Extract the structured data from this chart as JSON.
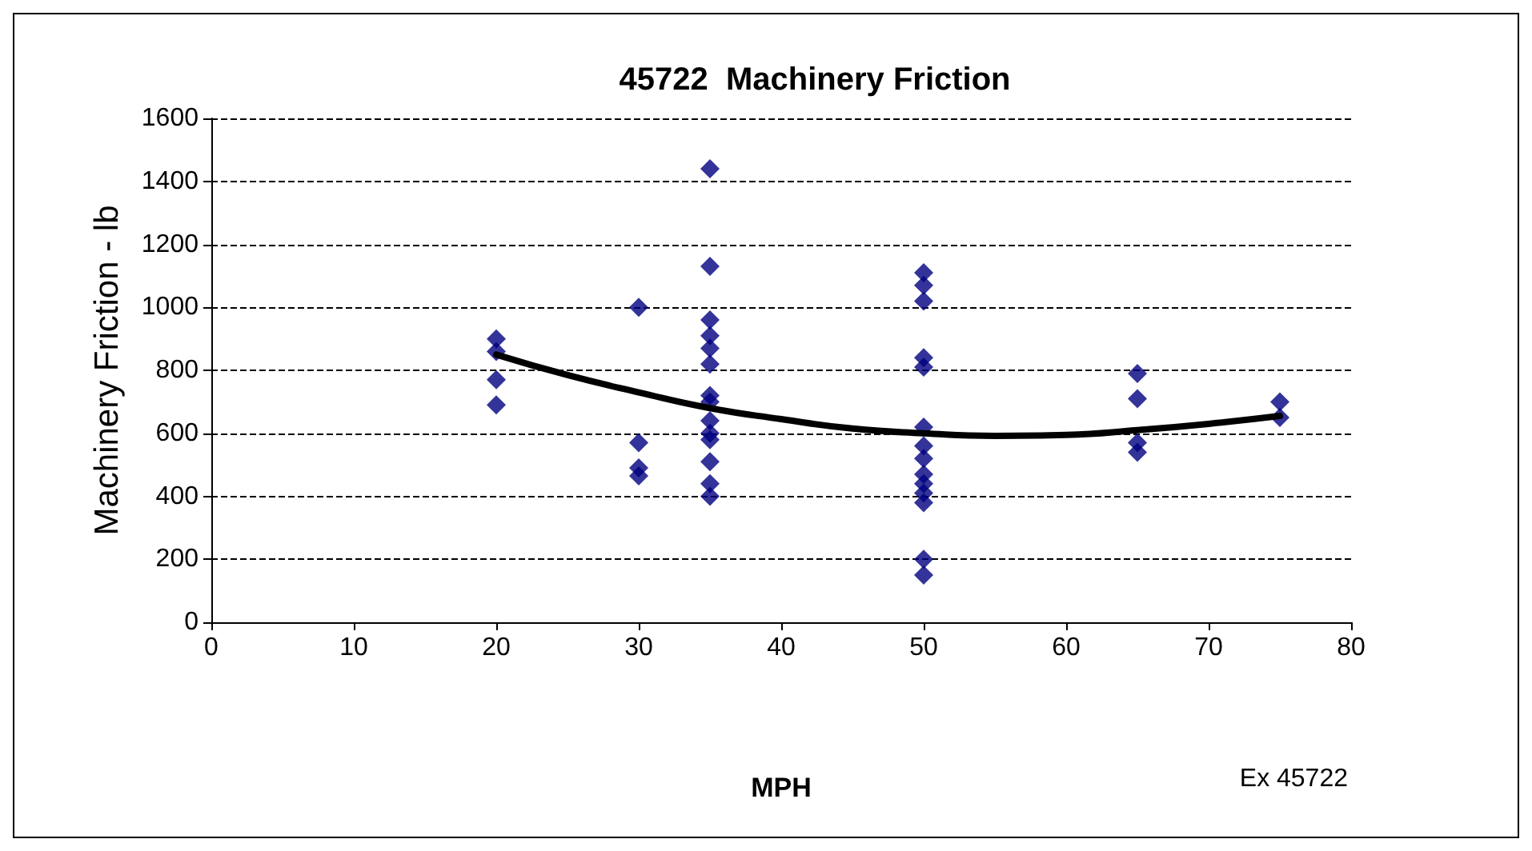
{
  "chart_data": {
    "type": "scatter",
    "title": "45722  Machinery Friction",
    "xlabel": "MPH",
    "ylabel": "Machinery Friction - lb",
    "annotations": [
      "Ex 45722"
    ],
    "xlim": [
      0,
      80
    ],
    "xticks": [
      0,
      10,
      20,
      30,
      40,
      50,
      60,
      70,
      80
    ],
    "ylim": [
      0,
      1600
    ],
    "yticks": [
      0,
      200,
      400,
      600,
      800,
      1000,
      1200,
      1400,
      1600
    ],
    "grid": "y",
    "marker": "diamond",
    "series": [
      {
        "color": "#000080",
        "x": [
          20,
          20,
          20,
          20,
          30,
          30,
          30,
          30,
          35,
          35,
          35,
          35,
          35,
          35,
          35,
          35,
          35,
          35,
          35,
          35,
          35,
          35,
          50,
          50,
          50,
          50,
          50,
          50,
          50,
          50,
          50,
          50,
          50,
          50,
          50,
          50,
          65,
          65,
          65,
          65,
          75,
          75
        ],
        "values": [
          900,
          860,
          770,
          690,
          1000,
          570,
          490,
          465,
          1440,
          1130,
          960,
          910,
          870,
          820,
          720,
          700,
          640,
          600,
          580,
          510,
          440,
          400,
          1110,
          1070,
          1020,
          840,
          810,
          620,
          560,
          520,
          470,
          440,
          410,
          380,
          200,
          150,
          790,
          710,
          570,
          540,
          700,
          650
        ]
      },
      {
        "type": "line",
        "color": "#000000",
        "marker": "none",
        "line_style": "solid",
        "x": [
          20,
          25,
          30,
          35,
          40,
          45,
          50,
          55,
          60,
          65,
          70,
          75
        ],
        "values": [
          850,
          785,
          730,
          680,
          645,
          615,
          600,
          592,
          595,
          610,
          630,
          655
        ]
      }
    ]
  }
}
